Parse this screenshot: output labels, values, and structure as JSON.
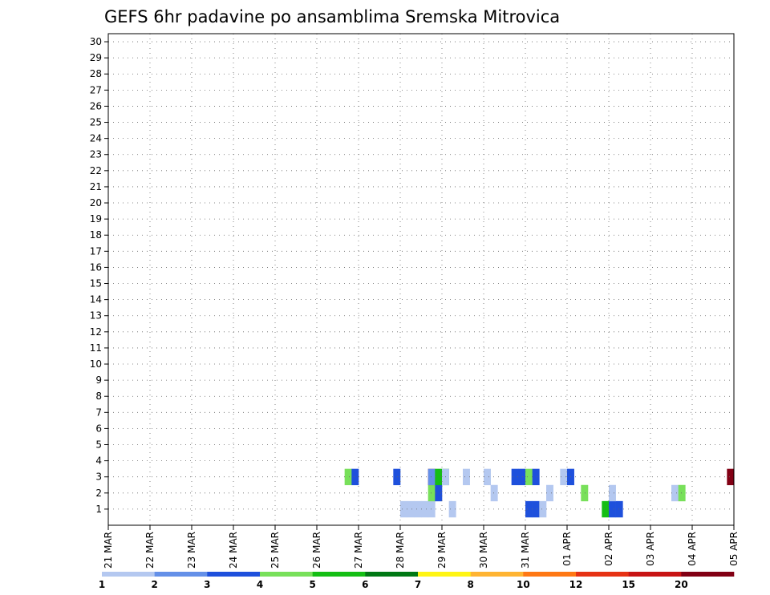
{
  "chart_data": {
    "type": "heatmap",
    "title": "GEFS 6hr padavine po ansamblima Sremska Mitrovica",
    "x_tick_labels": [
      "21 MAR",
      "22 MAR",
      "23 MAR",
      "24 MAR",
      "25 MAR",
      "26 MAR",
      "27 MAR",
      "28 MAR",
      "29 MAR",
      "30 MAR",
      "31 MAR",
      "01 APR",
      "02 APR",
      "03 APR",
      "04 APR",
      "05 APR"
    ],
    "y_tick_labels": [
      "1",
      "2",
      "3",
      "4",
      "5",
      "6",
      "7",
      "8",
      "9",
      "10",
      "11",
      "12",
      "13",
      "14",
      "15",
      "16",
      "17",
      "18",
      "19",
      "20",
      "21",
      "22",
      "23",
      "24",
      "25",
      "26",
      "27",
      "28",
      "29",
      "30"
    ],
    "x_range": [
      "21 MAR",
      "05 APR"
    ],
    "y_range": [
      0,
      30
    ],
    "time_step_hours": 6,
    "grid": true,
    "colorbar": {
      "labels": [
        "1",
        "2",
        "3",
        "4",
        "5",
        "6",
        "7",
        "8",
        "10",
        "12",
        "15",
        "20"
      ],
      "colors": [
        "#B4C8F0",
        "#6490E8",
        "#1E50DC",
        "#78E05A",
        "#14BE14",
        "#007814",
        "#FFF514",
        "#FFB432",
        "#FF7814",
        "#E63214",
        "#C81414",
        "#820014"
      ]
    },
    "cells": [
      [
        60,
        0,
        2
      ],
      [
        61,
        0,
        2
      ],
      [
        42,
        0,
        0
      ],
      [
        43,
        0,
        0
      ],
      [
        44,
        0,
        0
      ],
      [
        45,
        0,
        0
      ],
      [
        46,
        0,
        0
      ],
      [
        49,
        0,
        0
      ],
      [
        62,
        0,
        0
      ],
      [
        71,
        0,
        4
      ],
      [
        72,
        0,
        2
      ],
      [
        73,
        0,
        2
      ],
      [
        46,
        1,
        3
      ],
      [
        47,
        1,
        2
      ],
      [
        55,
        1,
        0
      ],
      [
        63,
        1,
        0
      ],
      [
        68,
        1,
        3
      ],
      [
        72,
        1,
        0
      ],
      [
        81,
        1,
        0
      ],
      [
        82,
        1,
        3
      ],
      [
        46,
        2,
        9
      ],
      [
        48,
        2,
        4
      ],
      [
        89,
        2,
        11
      ],
      [
        34,
        2,
        3
      ],
      [
        35,
        2,
        2
      ],
      [
        46,
        2,
        1
      ],
      [
        58,
        2,
        2
      ],
      [
        59,
        2,
        2
      ],
      [
        41,
        2,
        2
      ],
      [
        47,
        2,
        4
      ],
      [
        48,
        2,
        0
      ],
      [
        51,
        2,
        0
      ],
      [
        54,
        2,
        0
      ],
      [
        60,
        2,
        3
      ],
      [
        61,
        2,
        2
      ],
      [
        65,
        2,
        0
      ],
      [
        66,
        2,
        2
      ]
    ],
    "grid_cols": 90,
    "cell_note": "each cell: [six-hour step index, member index (0 = member 1), colour class index]"
  }
}
